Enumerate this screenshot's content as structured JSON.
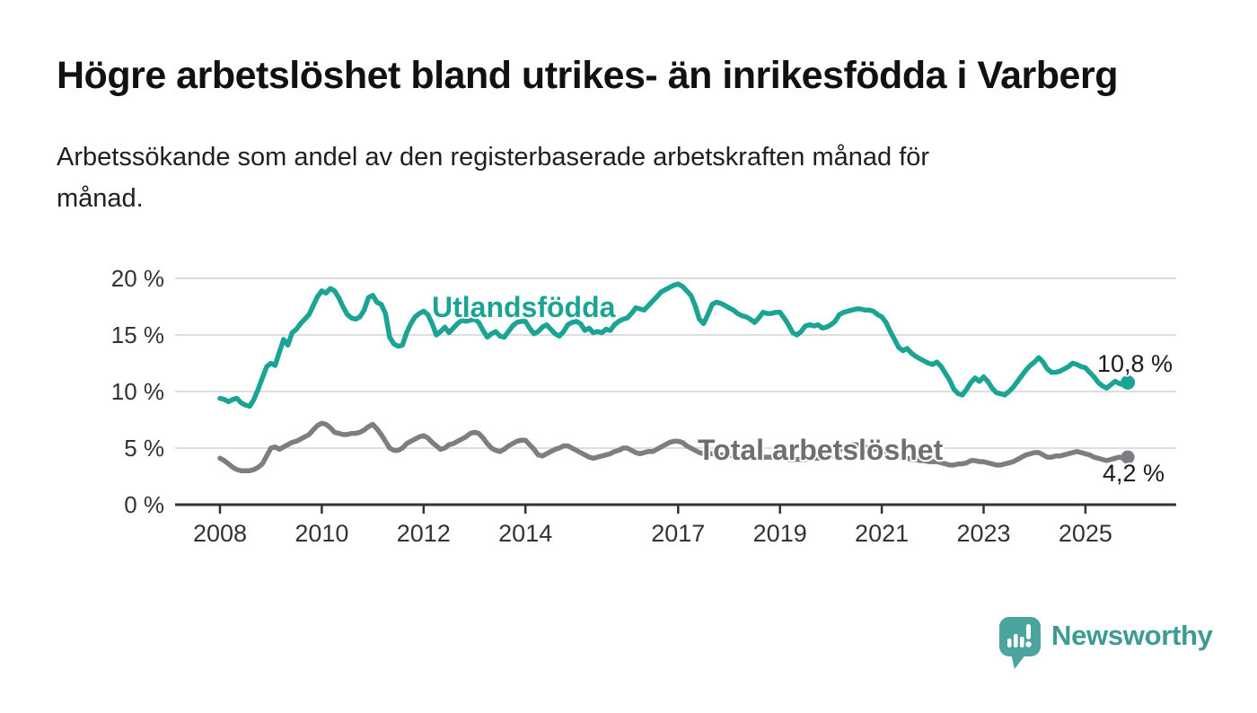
{
  "header": {
    "title": "Högre arbetslöshet bland utrikes- än inrikesfödda i Varberg",
    "subtitle_lines": [
      "Arbetssökande som andel av den registerbaserade arbetskraften månad för",
      "månad."
    ]
  },
  "chart_data": {
    "type": "line",
    "title": "Högre arbetslöshet bland utrikes- än inrikesfödda i Varberg",
    "subtitle": "Arbetssökande som andel av den registerbaserade arbetskraften månad för månad.",
    "x_unit": "year-month",
    "x_start": 2008.0,
    "x_step_months": 1,
    "x_end_label": "nov 2025",
    "ylim": [
      0,
      20
    ],
    "grid": true,
    "yticks": [
      {
        "value": 0,
        "label": "0 %"
      },
      {
        "value": 5,
        "label": "5 %"
      },
      {
        "value": 10,
        "label": "10 %"
      },
      {
        "value": 15,
        "label": "15 %"
      },
      {
        "value": 20,
        "label": "20 %"
      }
    ],
    "xticks": [
      {
        "year": 2008,
        "label": "2008"
      },
      {
        "year": 2010,
        "label": "2010"
      },
      {
        "year": 2012,
        "label": "2012"
      },
      {
        "year": 2014,
        "label": "2014"
      },
      {
        "year": 2017,
        "label": "2017"
      },
      {
        "year": 2019,
        "label": "2019"
      },
      {
        "year": 2021,
        "label": "2021"
      },
      {
        "year": 2023,
        "label": "2023"
      },
      {
        "year": 2025,
        "label": "2025"
      }
    ],
    "series": [
      {
        "id": "utlandsfodda",
        "name": "Utlandsfödda",
        "color": "#1BA394",
        "end_label": "10,8 %",
        "end_value": 10.8,
        "values": [
          9.4,
          9.3,
          9.1,
          9.3,
          9.4,
          9.0,
          8.8,
          8.7,
          9.3,
          10.2,
          11.2,
          12.2,
          12.5,
          12.3,
          13.5,
          14.6,
          14.1,
          15.2,
          15.5,
          16.0,
          16.4,
          16.8,
          17.6,
          18.4,
          18.9,
          18.7,
          19.1,
          18.9,
          18.3,
          17.5,
          16.8,
          16.5,
          16.4,
          16.6,
          17.2,
          18.3,
          18.5,
          17.9,
          17.7,
          16.9,
          14.8,
          14.2,
          14.0,
          14.1,
          15.2,
          16.0,
          16.6,
          16.9,
          17.1,
          16.8,
          16.0,
          15.0,
          15.3,
          15.7,
          15.2,
          15.6,
          16.0,
          16.3,
          16.2,
          16.3,
          16.4,
          16.1,
          15.4,
          14.8,
          15.1,
          15.3,
          14.9,
          14.8,
          15.3,
          15.8,
          16.1,
          16.2,
          16.2,
          15.6,
          15.1,
          15.3,
          15.7,
          15.9,
          15.5,
          15.1,
          14.9,
          15.3,
          15.9,
          16.1,
          16.2,
          16.0,
          15.4,
          15.6,
          15.2,
          15.3,
          15.2,
          15.5,
          15.4,
          15.9,
          16.2,
          16.4,
          16.5,
          16.9,
          17.4,
          17.3,
          17.2,
          17.6,
          18.0,
          18.4,
          18.8,
          19.0,
          19.2,
          19.4,
          19.5,
          19.3,
          18.9,
          18.5,
          17.6,
          16.4,
          16.0,
          16.8,
          17.7,
          17.9,
          17.8,
          17.6,
          17.4,
          17.2,
          16.9,
          16.7,
          16.6,
          16.4,
          16.1,
          16.5,
          17.0,
          16.9,
          16.9,
          17.0,
          17.0,
          16.5,
          15.9,
          15.2,
          15.0,
          15.3,
          15.8,
          15.9,
          15.8,
          15.9,
          15.6,
          15.7,
          15.9,
          16.2,
          16.8,
          17.0,
          17.1,
          17.2,
          17.3,
          17.3,
          17.2,
          17.2,
          17.1,
          16.8,
          16.6,
          16.1,
          15.3,
          14.6,
          13.9,
          13.6,
          13.8,
          13.4,
          13.1,
          12.9,
          12.7,
          12.5,
          12.4,
          12.6,
          12.2,
          11.6,
          11.0,
          10.2,
          9.8,
          9.7,
          10.2,
          10.8,
          11.2,
          10.9,
          11.3,
          10.9,
          10.3,
          9.9,
          9.8,
          9.7,
          10.0,
          10.4,
          10.9,
          11.4,
          11.9,
          12.3,
          12.6,
          13.0,
          12.6,
          12.0,
          11.7,
          11.7,
          11.8,
          12.0,
          12.2,
          12.5,
          12.4,
          12.2,
          12.1,
          11.7,
          11.3,
          10.8,
          10.5,
          10.3,
          10.6,
          10.9,
          10.7,
          10.6,
          10.8
        ]
      },
      {
        "id": "total-arbetsloshet",
        "name": "Total arbetslöshet",
        "color": "#7E7E82",
        "end_label": "4,2 %",
        "end_value": 4.2,
        "values": [
          4.1,
          3.9,
          3.6,
          3.3,
          3.1,
          3.0,
          3.0,
          3.0,
          3.1,
          3.3,
          3.6,
          4.3,
          5.0,
          5.1,
          4.9,
          5.1,
          5.3,
          5.5,
          5.6,
          5.8,
          6.0,
          6.2,
          6.6,
          7.0,
          7.2,
          7.1,
          6.8,
          6.4,
          6.3,
          6.2,
          6.2,
          6.3,
          6.3,
          6.4,
          6.6,
          6.9,
          7.1,
          6.7,
          6.2,
          5.6,
          5.0,
          4.8,
          4.8,
          5.0,
          5.4,
          5.6,
          5.8,
          6.0,
          6.1,
          5.9,
          5.5,
          5.2,
          4.9,
          5.0,
          5.3,
          5.4,
          5.6,
          5.8,
          6.0,
          6.3,
          6.4,
          6.3,
          5.9,
          5.4,
          5.0,
          4.8,
          4.7,
          4.9,
          5.2,
          5.4,
          5.6,
          5.7,
          5.7,
          5.3,
          4.9,
          4.4,
          4.3,
          4.5,
          4.7,
          4.9,
          5.0,
          5.2,
          5.2,
          5.0,
          4.8,
          4.6,
          4.4,
          4.2,
          4.1,
          4.2,
          4.3,
          4.4,
          4.5,
          4.7,
          4.8,
          5.0,
          5.0,
          4.8,
          4.6,
          4.5,
          4.6,
          4.7,
          4.7,
          4.9,
          5.1,
          5.3,
          5.5,
          5.6,
          5.6,
          5.5,
          5.2,
          5.0,
          4.8,
          4.6,
          4.5,
          4.5,
          4.5,
          4.5,
          4.4,
          4.4,
          4.4,
          4.3,
          4.2,
          4.2,
          4.1,
          4.1,
          4.1,
          4.1,
          4.2,
          4.2,
          4.2,
          4.2,
          4.2,
          4.1,
          4.0,
          4.0,
          4.0,
          4.0,
          4.0,
          4.1,
          4.1,
          4.1,
          4.1,
          4.2,
          4.3,
          4.4,
          4.8,
          5.1,
          5.2,
          5.3,
          5.3,
          5.2,
          5.1,
          5.0,
          4.9,
          4.9,
          4.9,
          4.7,
          4.6,
          4.4,
          4.3,
          4.2,
          4.1,
          4.0,
          4.0,
          3.9,
          3.9,
          3.8,
          3.8,
          3.8,
          3.7,
          3.6,
          3.5,
          3.5,
          3.6,
          3.6,
          3.7,
          3.9,
          3.9,
          3.8,
          3.8,
          3.7,
          3.6,
          3.5,
          3.5,
          3.6,
          3.7,
          3.8,
          4.0,
          4.2,
          4.4,
          4.5,
          4.6,
          4.6,
          4.4,
          4.2,
          4.2,
          4.3,
          4.3,
          4.4,
          4.5,
          4.6,
          4.7,
          4.6,
          4.5,
          4.4,
          4.2,
          4.1,
          4.0,
          3.9,
          4.0,
          4.1,
          4.2,
          4.1,
          4.2
        ]
      }
    ],
    "legend_position": "inline-labels",
    "colors": {
      "utlandsfodda": "#1BA394",
      "total_arbetsloshet": "#7E7E82",
      "grid": "#dedede",
      "axis": "#333333",
      "brand_teal": "#3E9B94"
    }
  },
  "branding": {
    "logo_text": "Newsworthy"
  }
}
